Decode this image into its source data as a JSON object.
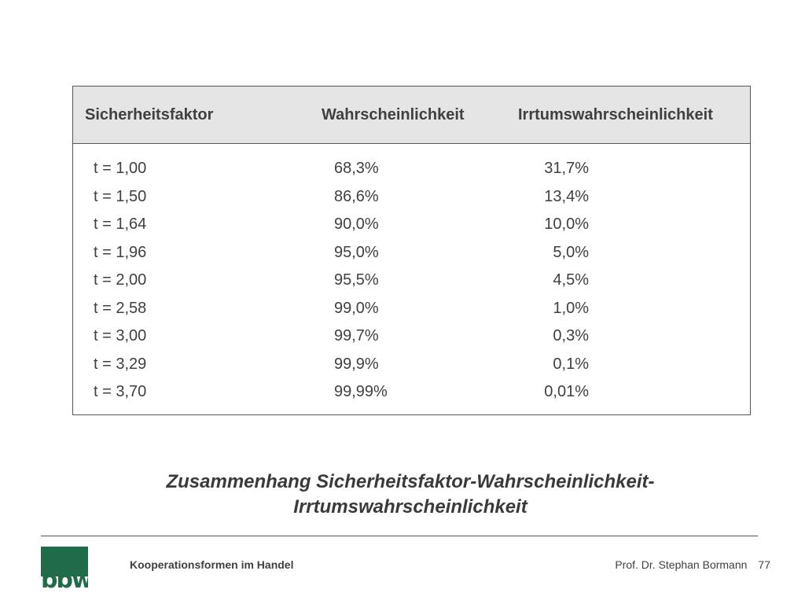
{
  "table": {
    "headers": [
      "Sicherheitsfaktor",
      "Wahrscheinlichkeit",
      "Irrtumswahrscheinlichkeit"
    ],
    "rows": [
      [
        "t = 1,00",
        "68,3%",
        "31,7%"
      ],
      [
        "t = 1,50",
        "86,6%",
        "13,4%"
      ],
      [
        "t = 1,64",
        "90,0%",
        "10,0%"
      ],
      [
        "t = 1,96",
        "95,0%",
        "5,0%"
      ],
      [
        "t = 2,00",
        "95,5%",
        "4,5%"
      ],
      [
        "t = 2,58",
        "99,0%",
        "1,0%"
      ],
      [
        "t = 3,00",
        "99,7%",
        "0,3%"
      ],
      [
        "t = 3,29",
        "99,9%",
        "0,1%"
      ],
      [
        "t = 3,70",
        "99,99%",
        "0,01%"
      ]
    ]
  },
  "caption": {
    "line1": "Zusammenhang Sicherheitsfaktor-Wahrscheinlichkeit-",
    "line2": "Irrtumswahrscheinlichkeit"
  },
  "footer": {
    "logo_text": "bbw",
    "title": "Kooperationsformen im Handel",
    "author": "Prof. Dr. Stephan Bormann",
    "page": "77"
  },
  "colors": {
    "logo_green": "#1f6b4a",
    "header_bg": "#e5e5e5"
  }
}
